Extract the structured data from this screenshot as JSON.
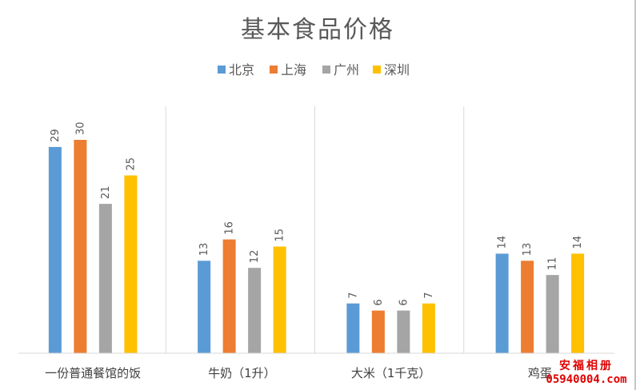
{
  "chart_data": {
    "type": "bar",
    "title": "基本食品价格",
    "categories": [
      "一份普通餐馆的饭",
      "牛奶（1升）",
      "大米（1千克）",
      "鸡蛋"
    ],
    "series": [
      {
        "name": "北京",
        "color": "#5b9bd5",
        "values": [
          29,
          13,
          7,
          14
        ]
      },
      {
        "name": "上海",
        "color": "#ed7d31",
        "values": [
          30,
          16,
          6,
          13
        ]
      },
      {
        "name": "广州",
        "color": "#a5a5a5",
        "values": [
          21,
          12,
          6,
          11
        ]
      },
      {
        "name": "深圳",
        "color": "#ffc000",
        "values": [
          25,
          15,
          7,
          14
        ]
      }
    ],
    "ylim": [
      0,
      38
    ],
    "grid": false,
    "legend_position": "top-center",
    "data_labels": true
  },
  "watermark": {
    "name": "安福相册",
    "code": "05940004.com"
  }
}
